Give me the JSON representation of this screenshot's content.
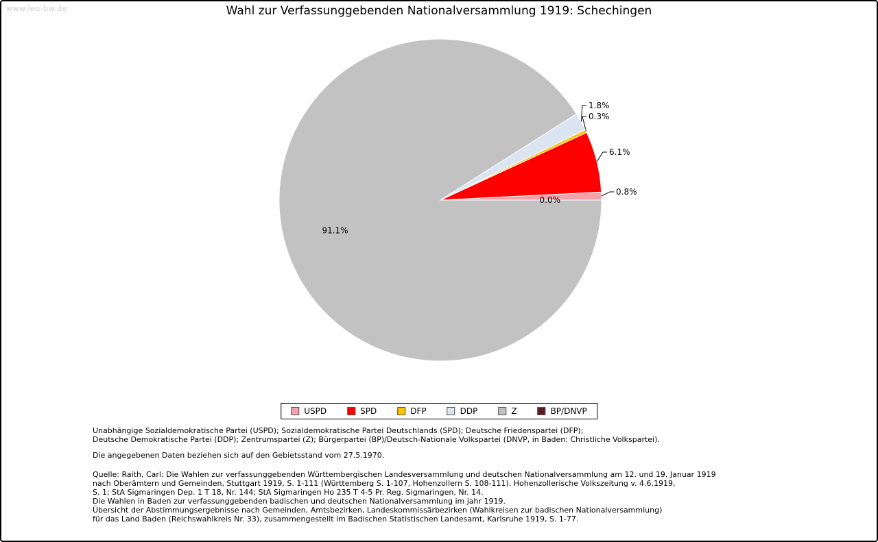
{
  "watermark": "www.leo-bw.de",
  "title": "Wahl zur Verfassunggebenden Nationalversammlung 1919: Schechingen",
  "chart_data": {
    "type": "pie",
    "title": "Wahl zur Verfassunggebenden Nationalversammlung 1919: Schechingen",
    "start_angle_deg": 0,
    "direction": "counterclockwise",
    "legend_position": "bottom",
    "slices": [
      {
        "label": "USPD",
        "value": 0.8,
        "pct_label": "0.8%",
        "color": "#f3a2ab"
      },
      {
        "label": "SPD",
        "value": 6.1,
        "pct_label": "6.1%",
        "color": "#ff0000"
      },
      {
        "label": "DFP",
        "value": 0.3,
        "pct_label": "0.3%",
        "color": "#ffc000"
      },
      {
        "label": "DDP",
        "value": 1.8,
        "pct_label": "1.8%",
        "color": "#dbe5f1"
      },
      {
        "label": "Z",
        "value": 91.1,
        "pct_label": "91.1%",
        "color": "#c2c2c2"
      },
      {
        "label": "BP/DNVP",
        "value": 0.0,
        "pct_label": "0.0%",
        "color": "#5c1a20"
      }
    ]
  },
  "footnotes": {
    "party_lines": [
      "Unabhängige Sozialdemokratische Partei (USPD); Sozialdemokratische Partei Deutschlands (SPD); Deutsche Friedenspartei (DFP);",
      "Deutsche Demokratische Partei (DDP); Zentrumspartei (Z); Bürgerpartei (BP)/Deutsch-Nationale Volkspartei (DNVP, in Baden: Christliche Volkspartei)."
    ],
    "data_note": "Die angegebenen Daten beziehen sich auf den Gebietsstand vom 27.5.1970.",
    "source_lines": [
      "Quelle: Raith, Carl: Die Wahlen zur verfassunggebenden Württembergischen Landesversammlung und deutschen Nationalversammlung am 12. und 19. Januar 1919",
      "nach Oberämtern und Gemeinden, Stuttgart 1919, S. 1-111 (Württemberg S. 1-107, Hohenzollern S. 108-111). Hohenzollerische Volkszeitung v. 4.6.1919,",
      "S. 1; StA Sigmaringen Dep. 1 T 18, Nr. 144; StA Sigmaringen Ho 235 T 4-5 Pr. Reg. Sigmaringen, Nr. 14.",
      "Die Wahlen in Baden zur verfassunggebenden badischen und deutschen Nationalversammlung im jahr 1919.",
      "Übersicht der Abstimmungsergebnisse nach Gemeinden, Amtsbezirken, Landeskommissärbezirken (Wahlkreisen zur badischen Nationalversammlung)",
      "für das Land Baden (Reichswahlkreis Nr. 33), zusammengestellt im Badischen Statistischen Landesamt, Karlsruhe 1919, S. 1-77."
    ]
  }
}
